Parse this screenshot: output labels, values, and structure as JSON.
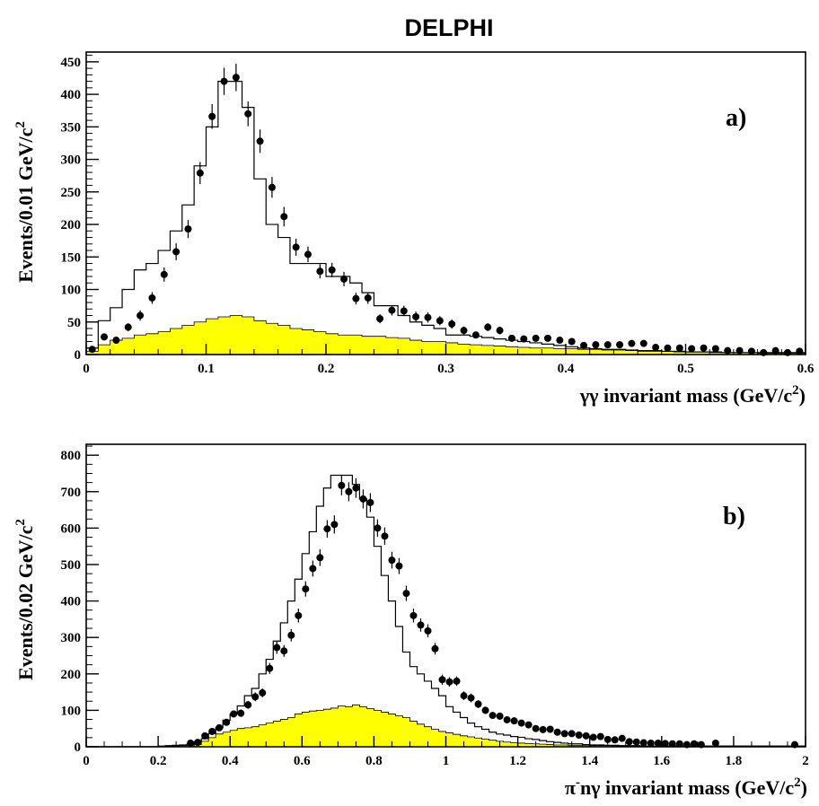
{
  "page_title": "DELPHI",
  "chart_data": [
    {
      "type": "histogram",
      "panel_label": "a)",
      "xlabel_prefix": "γγ invariant mass (GeV/c",
      "xlabel_sup": "2",
      "xlabel_suffix": ")",
      "ylabel_prefix": "Events/0.01 GeV/c",
      "ylabel_sup": "2",
      "xlim": [
        0,
        0.6
      ],
      "ylim": [
        0,
        465
      ],
      "xticks": [
        0,
        0.1,
        0.2,
        0.3,
        0.4,
        0.5,
        0.6
      ],
      "xtick_labels": [
        "0",
        "0.1",
        "0.2",
        "0.3",
        "0.4",
        "0.5",
        "0.6"
      ],
      "yticks": [
        0,
        50,
        100,
        150,
        200,
        250,
        300,
        350,
        400,
        450
      ],
      "ytick_labels": [
        "0",
        "50",
        "100",
        "150",
        "200",
        "250",
        "300",
        "350",
        "400",
        "450"
      ],
      "bin_edges": [
        0,
        0.01,
        0.02,
        0.03,
        0.04,
        0.05,
        0.06,
        0.07,
        0.08,
        0.09,
        0.1,
        0.11,
        0.12,
        0.13,
        0.14,
        0.15,
        0.16,
        0.17,
        0.18,
        0.19,
        0.2,
        0.21,
        0.22,
        0.23,
        0.24,
        0.25,
        0.26,
        0.27,
        0.28,
        0.29,
        0.3,
        0.31,
        0.32,
        0.33,
        0.34,
        0.35,
        0.36,
        0.37,
        0.38,
        0.39,
        0.4,
        0.41,
        0.42,
        0.43,
        0.44,
        0.45,
        0.46,
        0.47,
        0.48,
        0.49,
        0.5,
        0.51,
        0.52,
        0.53,
        0.54,
        0.55,
        0.56,
        0.57,
        0.58,
        0.59,
        0.6
      ],
      "series": [
        {
          "kind": "data_points",
          "color": "#000000",
          "x": [
            0.005,
            0.015,
            0.025,
            0.035,
            0.045,
            0.055,
            0.065,
            0.075,
            0.085,
            0.095,
            0.105,
            0.115,
            0.125,
            0.135,
            0.145,
            0.155,
            0.165,
            0.175,
            0.185,
            0.195,
            0.205,
            0.215,
            0.225,
            0.235,
            0.245,
            0.255,
            0.265,
            0.275,
            0.285,
            0.295,
            0.305,
            0.315,
            0.325,
            0.335,
            0.345,
            0.355,
            0.365,
            0.375,
            0.385,
            0.395,
            0.405,
            0.415,
            0.425,
            0.435,
            0.445,
            0.455,
            0.465,
            0.475,
            0.485,
            0.495,
            0.505,
            0.515,
            0.525,
            0.535,
            0.545,
            0.555,
            0.565,
            0.575,
            0.585,
            0.595
          ],
          "y": [
            8,
            27,
            22,
            42,
            60,
            87,
            123,
            158,
            193,
            279,
            366,
            420,
            426,
            370,
            328,
            257,
            212,
            165,
            154,
            128,
            130,
            116,
            86,
            87,
            55,
            68,
            67,
            58,
            57,
            52,
            47,
            37,
            30,
            42,
            37,
            25,
            24,
            25,
            25,
            22,
            20,
            14,
            15,
            15,
            15,
            17,
            17,
            11,
            10,
            10,
            9,
            10,
            9,
            6,
            6,
            5,
            3,
            6,
            3,
            5
          ],
          "yerr": [
            3,
            5,
            5,
            6,
            8,
            9,
            11,
            13,
            14,
            17,
            19,
            21,
            21,
            19,
            18,
            16,
            15,
            13,
            12,
            11,
            11,
            11,
            9,
            9,
            7,
            8,
            8,
            8,
            8,
            7,
            7,
            6,
            5,
            6,
            6,
            5,
            5,
            5,
            5,
            5,
            4,
            4,
            4,
            4,
            4,
            4,
            4,
            3,
            3,
            3,
            3,
            3,
            3,
            2,
            2,
            2,
            2,
            2,
            2,
            2
          ]
        },
        {
          "kind": "step_histogram",
          "color": "#000000",
          "values": [
            10,
            52,
            72,
            100,
            130,
            140,
            160,
            190,
            230,
            290,
            350,
            420,
            420,
            380,
            270,
            200,
            180,
            140,
            140,
            140,
            120,
            120,
            110,
            95,
            75,
            75,
            60,
            50,
            45,
            40,
            30,
            30,
            28,
            26,
            24,
            22,
            20,
            18,
            16,
            14,
            12,
            10,
            9,
            8,
            8,
            7,
            6,
            6,
            5,
            5,
            4,
            4,
            4,
            3,
            3,
            3,
            3,
            3,
            3,
            3
          ]
        },
        {
          "kind": "filled_histogram",
          "color": "#ffff00",
          "values": [
            5,
            15,
            22,
            25,
            30,
            32,
            35,
            40,
            45,
            50,
            55,
            58,
            60,
            58,
            52,
            48,
            45,
            40,
            38,
            35,
            32,
            30,
            30,
            28,
            28,
            26,
            25,
            22,
            20,
            20,
            18,
            16,
            15,
            14,
            13,
            12,
            11,
            10,
            10,
            9,
            9,
            8,
            8,
            7,
            7,
            6,
            5,
            5,
            5,
            4,
            4,
            4,
            3,
            3,
            3,
            3,
            2,
            2,
            2,
            2
          ]
        }
      ]
    },
    {
      "type": "histogram",
      "panel_label": "b)",
      "xlabel_prefix": "π",
      "xlabel_minus_sup": "-",
      "xlabel_suffix_a": "nγ invariant mass (GeV/c",
      "xlabel_sup": "2",
      "xlabel_suffix": ")",
      "ylabel_prefix": "Events/0.02 GeV/c",
      "ylabel_sup": "2",
      "xlim": [
        0,
        2
      ],
      "ylim": [
        0,
        830
      ],
      "xticks": [
        0,
        0.2,
        0.4,
        0.6,
        0.8,
        1,
        1.2,
        1.4,
        1.6,
        1.8,
        2
      ],
      "xtick_labels": [
        "0",
        "0.2",
        "0.4",
        "0.6",
        "0.8",
        "1",
        "1.2",
        "1.4",
        "1.6",
        "1.8",
        "2"
      ],
      "yticks": [
        0,
        100,
        200,
        300,
        400,
        500,
        600,
        700,
        800
      ],
      "ytick_labels": [
        "0",
        "100",
        "200",
        "300",
        "400",
        "500",
        "600",
        "700",
        "800"
      ],
      "bin_edges": [
        0,
        0.02,
        0.04,
        0.06,
        0.08,
        0.1,
        0.12,
        0.14,
        0.16,
        0.18,
        0.2,
        0.22,
        0.24,
        0.26,
        0.28,
        0.3,
        0.32,
        0.34,
        0.36,
        0.38,
        0.4,
        0.42,
        0.44,
        0.46,
        0.48,
        0.5,
        0.52,
        0.54,
        0.56,
        0.58,
        0.6,
        0.62,
        0.64,
        0.66,
        0.68,
        0.7,
        0.72,
        0.74,
        0.76,
        0.78,
        0.8,
        0.82,
        0.84,
        0.86,
        0.88,
        0.9,
        0.92,
        0.94,
        0.96,
        0.98,
        1,
        1.02,
        1.04,
        1.06,
        1.08,
        1.1,
        1.12,
        1.14,
        1.16,
        1.18,
        1.2,
        1.22,
        1.24,
        1.26,
        1.28,
        1.3,
        1.32,
        1.34,
        1.36,
        1.38,
        1.4,
        1.42,
        1.44,
        1.46,
        1.48,
        1.5,
        1.52,
        1.54,
        1.56,
        1.58,
        1.6,
        1.62,
        1.64,
        1.66,
        1.68,
        1.7,
        1.72,
        1.74,
        1.76,
        1.78,
        1.8,
        1.82,
        1.84,
        1.86,
        1.88,
        1.9,
        1.92,
        1.94,
        1.96,
        1.98,
        2
      ],
      "series": [
        {
          "kind": "data_points",
          "color": "#000000",
          "x": [
            0.29,
            0.31,
            0.33,
            0.35,
            0.37,
            0.39,
            0.41,
            0.43,
            0.45,
            0.47,
            0.49,
            0.51,
            0.53,
            0.55,
            0.57,
            0.59,
            0.61,
            0.63,
            0.65,
            0.67,
            0.69,
            0.71,
            0.73,
            0.75,
            0.77,
            0.79,
            0.81,
            0.83,
            0.85,
            0.87,
            0.89,
            0.91,
            0.93,
            0.95,
            0.97,
            0.99,
            1.01,
            1.03,
            1.05,
            1.07,
            1.09,
            1.11,
            1.13,
            1.15,
            1.17,
            1.19,
            1.21,
            1.23,
            1.25,
            1.27,
            1.29,
            1.31,
            1.33,
            1.35,
            1.37,
            1.39,
            1.41,
            1.43,
            1.45,
            1.47,
            1.49,
            1.51,
            1.53,
            1.55,
            1.57,
            1.59,
            1.61,
            1.63,
            1.65,
            1.67,
            1.69,
            1.71,
            1.75,
            1.97
          ],
          "y": [
            10,
            12,
            30,
            42,
            52,
            67,
            90,
            92,
            115,
            137,
            148,
            215,
            272,
            263,
            306,
            360,
            433,
            489,
            519,
            598,
            610,
            717,
            700,
            710,
            680,
            670,
            600,
            578,
            512,
            496,
            421,
            360,
            334,
            318,
            269,
            184,
            178,
            180,
            140,
            134,
            117,
            100,
            86,
            84,
            74,
            71,
            65,
            60,
            50,
            47,
            48,
            40,
            36,
            36,
            32,
            30,
            26,
            28,
            20,
            19,
            23,
            14,
            13,
            11,
            10,
            10,
            9,
            8,
            8,
            6,
            8,
            6,
            10,
            6
          ],
          "yerr": [
            3,
            3,
            5,
            6,
            7,
            8,
            9,
            10,
            11,
            12,
            12,
            15,
            17,
            16,
            17,
            19,
            21,
            22,
            23,
            24,
            25,
            27,
            26,
            27,
            26,
            26,
            24,
            24,
            23,
            22,
            21,
            19,
            18,
            18,
            16,
            14,
            13,
            13,
            12,
            12,
            11,
            10,
            9,
            9,
            9,
            8,
            8,
            8,
            7,
            7,
            7,
            6,
            6,
            6,
            6,
            5,
            5,
            5,
            4,
            4,
            5,
            4,
            4,
            3,
            3,
            3,
            3,
            3,
            3,
            2,
            3,
            2,
            3,
            2
          ]
        },
        {
          "kind": "step_histogram",
          "color": "#000000",
          "values": [
            0,
            0,
            0,
            0,
            0,
            0,
            0,
            0,
            0,
            0,
            2,
            3,
            4,
            5,
            7,
            12,
            22,
            36,
            52,
            73,
            90,
            112,
            140,
            160,
            200,
            240,
            290,
            340,
            400,
            460,
            530,
            590,
            660,
            710,
            745,
            745,
            745,
            720,
            680,
            630,
            550,
            470,
            400,
            330,
            260,
            220,
            200,
            180,
            160,
            140,
            110,
            95,
            80,
            65,
            55,
            48,
            40,
            35,
            32,
            28,
            26,
            22,
            20,
            17,
            14,
            12,
            10,
            8,
            8,
            6,
            5,
            5,
            4,
            4,
            3,
            3,
            3,
            2,
            2,
            2,
            2,
            2,
            2,
            2,
            2,
            2,
            2,
            2,
            2,
            2,
            2,
            2,
            2,
            2,
            2,
            2,
            2,
            2,
            2,
            2
          ]
        },
        {
          "kind": "filled_histogram",
          "color": "#ffff00",
          "values": [
            0,
            0,
            0,
            0,
            0,
            0,
            0,
            0,
            0,
            0,
            1,
            1,
            2,
            3,
            4,
            6,
            15,
            25,
            35,
            40,
            45,
            50,
            52,
            55,
            60,
            65,
            70,
            75,
            80,
            90,
            95,
            98,
            100,
            103,
            106,
            112,
            110,
            115,
            110,
            105,
            100,
            95,
            90,
            85,
            80,
            70,
            62,
            55,
            48,
            42,
            38,
            34,
            30,
            27,
            24,
            21,
            18,
            15,
            13,
            11,
            10,
            9,
            8,
            7,
            6,
            5,
            5,
            4,
            4,
            3,
            3,
            3,
            3,
            2,
            2,
            2,
            2,
            2,
            2,
            2,
            2,
            2,
            2,
            2,
            2,
            2,
            2,
            2,
            2,
            2,
            2,
            2,
            2,
            2,
            2,
            2,
            2,
            2,
            2,
            2
          ]
        }
      ]
    }
  ]
}
